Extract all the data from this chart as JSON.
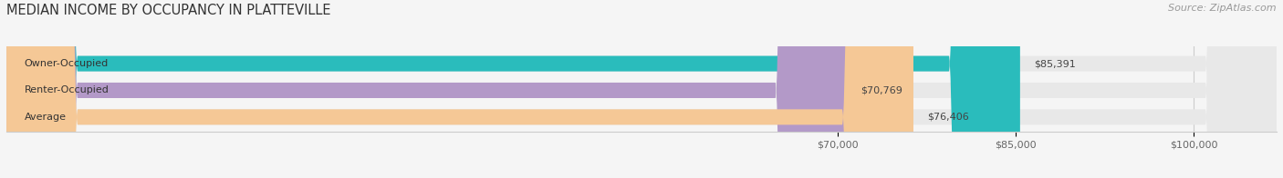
{
  "title": "MEDIAN INCOME BY OCCUPANCY IN PLATTEVILLE",
  "source": "Source: ZipAtlas.com",
  "categories": [
    "Owner-Occupied",
    "Renter-Occupied",
    "Average"
  ],
  "values": [
    85391,
    70769,
    76406
  ],
  "value_labels": [
    "$85,391",
    "$70,769",
    "$76,406"
  ],
  "bar_colors": [
    "#2abcbc",
    "#b399c8",
    "#f5c896"
  ],
  "bar_bg_color": "#e8e8e8",
  "xlim_min": 0,
  "xlim_max": 107000,
  "xtick_values": [
    70000,
    85000,
    100000
  ],
  "xtick_labels": [
    "$70,000",
    "$85,000",
    "$100,000"
  ],
  "title_fontsize": 10.5,
  "source_fontsize": 8,
  "label_fontsize": 8,
  "bar_height": 0.58,
  "background_color": "#f5f5f5"
}
